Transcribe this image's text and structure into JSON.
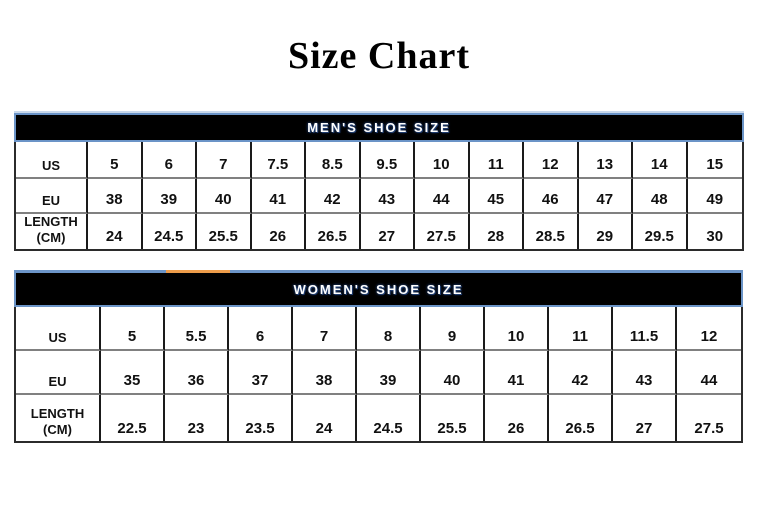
{
  "title": "Size Chart",
  "colors": {
    "header_bg": "#000000",
    "header_border_blue": "#6b94c7",
    "header_text": "#ffffff",
    "header_text_glow": "#1f3c6e",
    "row_divider_gray": "#808080",
    "column_divider_black": "#1a1a1a",
    "accent_orange": "#ed9c4a"
  },
  "chart_data": [
    {
      "type": "table",
      "title": "MEN'S SHOE SIZE",
      "rows": [
        {
          "label": "US",
          "values": [
            "5",
            "6",
            "7",
            "7.5",
            "8.5",
            "9.5",
            "10",
            "11",
            "12",
            "13",
            "14",
            "15"
          ]
        },
        {
          "label": "EU",
          "values": [
            "38",
            "39",
            "40",
            "41",
            "42",
            "43",
            "44",
            "45",
            "46",
            "47",
            "48",
            "49"
          ]
        },
        {
          "label": "LENGTH (CM)",
          "values": [
            "24",
            "24.5",
            "25.5",
            "26",
            "26.5",
            "27",
            "27.5",
            "28",
            "28.5",
            "29",
            "29.5",
            "30"
          ]
        }
      ]
    },
    {
      "type": "table",
      "title": "WOMEN'S SHOE SIZE",
      "rows": [
        {
          "label": "US",
          "values": [
            "5",
            "5.5",
            "6",
            "7",
            "8",
            "9",
            "10",
            "11",
            "11.5",
            "12"
          ]
        },
        {
          "label": "EU",
          "values": [
            "35",
            "36",
            "37",
            "38",
            "39",
            "40",
            "41",
            "42",
            "43",
            "44"
          ]
        },
        {
          "label": "LENGTH (CM)",
          "values": [
            "22.5",
            "23",
            "23.5",
            "24",
            "24.5",
            "25.5",
            "26",
            "26.5",
            "27",
            "27.5"
          ]
        }
      ]
    }
  ]
}
